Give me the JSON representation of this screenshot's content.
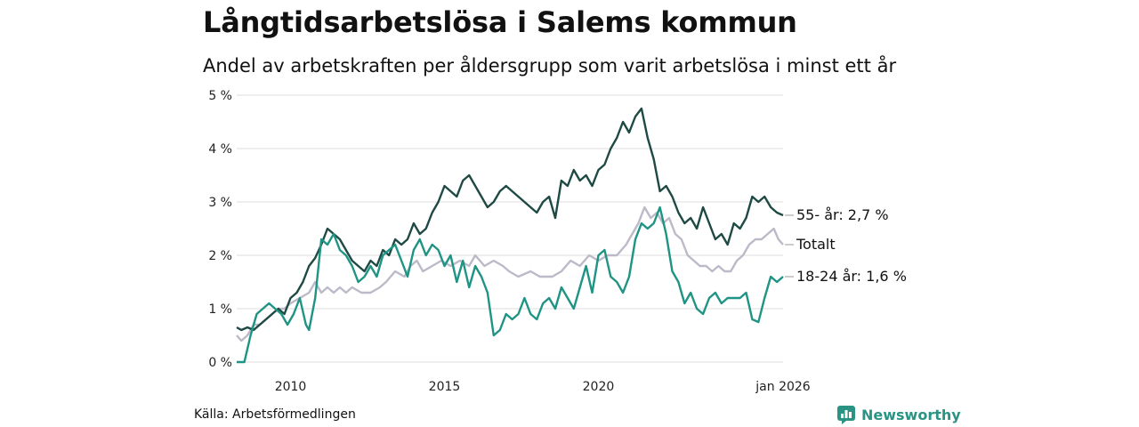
{
  "title": "Långtidsarbetslösa i Salems kommun",
  "subtitle": "Andel av arbetskraften per åldersgrupp som varit arbetslösa i minst ett år",
  "source": "Källa: Arbetsförmedlingen",
  "brand": "Newsworthy",
  "brand_icon": "bar-chart-icon",
  "chart_data": {
    "type": "line",
    "title": "Långtidsarbetslösa i Salems kommun",
    "ylabel": "",
    "xlabel": "",
    "ylim": [
      0,
      5
    ],
    "xlim": [
      2008.25,
      2026.0
    ],
    "y_ticks": [
      0,
      1,
      2,
      3,
      4,
      5
    ],
    "y_tick_labels": [
      "0 %",
      "1 %",
      "2 %",
      "3 %",
      "4 %",
      "5 %"
    ],
    "x_ticks": [
      2010,
      2015,
      2020,
      2026.0
    ],
    "x_tick_labels": [
      "2010",
      "2015",
      "2020",
      "jan 2026"
    ],
    "grid": true,
    "series": [
      {
        "name": "Totalt",
        "label": "Totalt",
        "color": "#bdb9c8",
        "points": [
          [
            2008.25,
            0.5
          ],
          [
            2008.4,
            0.4
          ],
          [
            2008.6,
            0.5
          ],
          [
            2008.8,
            0.7
          ],
          [
            2009.0,
            0.7
          ],
          [
            2009.2,
            0.8
          ],
          [
            2009.4,
            0.9
          ],
          [
            2009.6,
            1.0
          ],
          [
            2009.8,
            1.0
          ],
          [
            2010.0,
            1.1
          ],
          [
            2010.3,
            1.2
          ],
          [
            2010.6,
            1.3
          ],
          [
            2010.8,
            1.5
          ],
          [
            2011.0,
            1.3
          ],
          [
            2011.2,
            1.4
          ],
          [
            2011.4,
            1.3
          ],
          [
            2011.6,
            1.4
          ],
          [
            2011.8,
            1.3
          ],
          [
            2012.0,
            1.4
          ],
          [
            2012.3,
            1.3
          ],
          [
            2012.6,
            1.3
          ],
          [
            2012.9,
            1.4
          ],
          [
            2013.1,
            1.5
          ],
          [
            2013.4,
            1.7
          ],
          [
            2013.7,
            1.6
          ],
          [
            2013.9,
            1.8
          ],
          [
            2014.1,
            1.9
          ],
          [
            2014.3,
            1.7
          ],
          [
            2014.6,
            1.8
          ],
          [
            2014.9,
            1.9
          ],
          [
            2015.2,
            1.8
          ],
          [
            2015.5,
            1.9
          ],
          [
            2015.8,
            1.8
          ],
          [
            2016.0,
            2.0
          ],
          [
            2016.3,
            1.8
          ],
          [
            2016.6,
            1.9
          ],
          [
            2016.9,
            1.8
          ],
          [
            2017.1,
            1.7
          ],
          [
            2017.4,
            1.6
          ],
          [
            2017.8,
            1.7
          ],
          [
            2018.1,
            1.6
          ],
          [
            2018.5,
            1.6
          ],
          [
            2018.8,
            1.7
          ],
          [
            2019.1,
            1.9
          ],
          [
            2019.4,
            1.8
          ],
          [
            2019.7,
            2.0
          ],
          [
            2020.0,
            1.9
          ],
          [
            2020.3,
            2.0
          ],
          [
            2020.6,
            2.0
          ],
          [
            2020.9,
            2.2
          ],
          [
            2021.1,
            2.4
          ],
          [
            2021.3,
            2.6
          ],
          [
            2021.5,
            2.9
          ],
          [
            2021.7,
            2.7
          ],
          [
            2021.9,
            2.8
          ],
          [
            2022.1,
            2.6
          ],
          [
            2022.3,
            2.7
          ],
          [
            2022.5,
            2.4
          ],
          [
            2022.7,
            2.3
          ],
          [
            2022.9,
            2.0
          ],
          [
            2023.1,
            1.9
          ],
          [
            2023.3,
            1.8
          ],
          [
            2023.5,
            1.8
          ],
          [
            2023.7,
            1.7
          ],
          [
            2023.9,
            1.8
          ],
          [
            2024.1,
            1.7
          ],
          [
            2024.3,
            1.7
          ],
          [
            2024.5,
            1.9
          ],
          [
            2024.7,
            2.0
          ],
          [
            2024.9,
            2.2
          ],
          [
            2025.1,
            2.3
          ],
          [
            2025.3,
            2.3
          ],
          [
            2025.5,
            2.4
          ],
          [
            2025.7,
            2.5
          ],
          [
            2025.85,
            2.3
          ],
          [
            2026.0,
            2.2
          ]
        ]
      },
      {
        "name": "55- år",
        "label": "55- år: 2,7 %",
        "color": "#1f4a44",
        "points": [
          [
            2008.25,
            0.65
          ],
          [
            2008.4,
            0.6
          ],
          [
            2008.6,
            0.65
          ],
          [
            2008.8,
            0.6
          ],
          [
            2009.0,
            0.7
          ],
          [
            2009.2,
            0.8
          ],
          [
            2009.4,
            0.9
          ],
          [
            2009.6,
            1.0
          ],
          [
            2009.8,
            0.9
          ],
          [
            2010.0,
            1.2
          ],
          [
            2010.2,
            1.3
          ],
          [
            2010.4,
            1.5
          ],
          [
            2010.6,
            1.8
          ],
          [
            2010.8,
            1.95
          ],
          [
            2011.0,
            2.2
          ],
          [
            2011.2,
            2.5
          ],
          [
            2011.4,
            2.4
          ],
          [
            2011.6,
            2.3
          ],
          [
            2011.8,
            2.1
          ],
          [
            2012.0,
            1.9
          ],
          [
            2012.2,
            1.8
          ],
          [
            2012.4,
            1.7
          ],
          [
            2012.6,
            1.9
          ],
          [
            2012.8,
            1.8
          ],
          [
            2013.0,
            2.1
          ],
          [
            2013.2,
            2.0
          ],
          [
            2013.4,
            2.3
          ],
          [
            2013.6,
            2.2
          ],
          [
            2013.8,
            2.3
          ],
          [
            2014.0,
            2.6
          ],
          [
            2014.2,
            2.4
          ],
          [
            2014.4,
            2.5
          ],
          [
            2014.6,
            2.8
          ],
          [
            2014.8,
            3.0
          ],
          [
            2015.0,
            3.3
          ],
          [
            2015.2,
            3.2
          ],
          [
            2015.4,
            3.1
          ],
          [
            2015.6,
            3.4
          ],
          [
            2015.8,
            3.5
          ],
          [
            2016.0,
            3.3
          ],
          [
            2016.2,
            3.1
          ],
          [
            2016.4,
            2.9
          ],
          [
            2016.6,
            3.0
          ],
          [
            2016.8,
            3.2
          ],
          [
            2017.0,
            3.3
          ],
          [
            2017.2,
            3.2
          ],
          [
            2017.4,
            3.1
          ],
          [
            2017.6,
            3.0
          ],
          [
            2017.8,
            2.9
          ],
          [
            2018.0,
            2.8
          ],
          [
            2018.2,
            3.0
          ],
          [
            2018.4,
            3.1
          ],
          [
            2018.6,
            2.7
          ],
          [
            2018.8,
            3.4
          ],
          [
            2019.0,
            3.3
          ],
          [
            2019.2,
            3.6
          ],
          [
            2019.4,
            3.4
          ],
          [
            2019.6,
            3.5
          ],
          [
            2019.8,
            3.3
          ],
          [
            2020.0,
            3.6
          ],
          [
            2020.2,
            3.7
          ],
          [
            2020.4,
            4.0
          ],
          [
            2020.6,
            4.2
          ],
          [
            2020.8,
            4.5
          ],
          [
            2021.0,
            4.3
          ],
          [
            2021.2,
            4.6
          ],
          [
            2021.4,
            4.75
          ],
          [
            2021.6,
            4.2
          ],
          [
            2021.8,
            3.8
          ],
          [
            2022.0,
            3.2
          ],
          [
            2022.2,
            3.3
          ],
          [
            2022.4,
            3.1
          ],
          [
            2022.6,
            2.8
          ],
          [
            2022.8,
            2.6
          ],
          [
            2023.0,
            2.7
          ],
          [
            2023.2,
            2.5
          ],
          [
            2023.4,
            2.9
          ],
          [
            2023.6,
            2.6
          ],
          [
            2023.8,
            2.3
          ],
          [
            2024.0,
            2.4
          ],
          [
            2024.2,
            2.2
          ],
          [
            2024.4,
            2.6
          ],
          [
            2024.6,
            2.5
          ],
          [
            2024.8,
            2.7
          ],
          [
            2025.0,
            3.1
          ],
          [
            2025.2,
            3.0
          ],
          [
            2025.4,
            3.1
          ],
          [
            2025.6,
            2.9
          ],
          [
            2025.8,
            2.8
          ],
          [
            2026.0,
            2.75
          ]
        ]
      },
      {
        "name": "18-24 år",
        "label": "18-24 år: 1,6 %",
        "color": "#1f9484",
        "points": [
          [
            2008.25,
            0.0
          ],
          [
            2008.5,
            0.0
          ],
          [
            2008.7,
            0.5
          ],
          [
            2008.9,
            0.9
          ],
          [
            2009.1,
            1.0
          ],
          [
            2009.3,
            1.1
          ],
          [
            2009.5,
            1.0
          ],
          [
            2009.7,
            0.9
          ],
          [
            2009.9,
            0.7
          ],
          [
            2010.1,
            0.9
          ],
          [
            2010.3,
            1.2
          ],
          [
            2010.5,
            0.7
          ],
          [
            2010.6,
            0.6
          ],
          [
            2010.8,
            1.2
          ],
          [
            2011.0,
            2.3
          ],
          [
            2011.2,
            2.2
          ],
          [
            2011.4,
            2.4
          ],
          [
            2011.6,
            2.1
          ],
          [
            2011.8,
            2.0
          ],
          [
            2012.0,
            1.8
          ],
          [
            2012.2,
            1.5
          ],
          [
            2012.4,
            1.6
          ],
          [
            2012.6,
            1.8
          ],
          [
            2012.8,
            1.6
          ],
          [
            2013.0,
            2.0
          ],
          [
            2013.2,
            2.1
          ],
          [
            2013.4,
            2.2
          ],
          [
            2013.6,
            1.9
          ],
          [
            2013.8,
            1.6
          ],
          [
            2014.0,
            2.1
          ],
          [
            2014.2,
            2.3
          ],
          [
            2014.4,
            2.0
          ],
          [
            2014.6,
            2.2
          ],
          [
            2014.8,
            2.1
          ],
          [
            2015.0,
            1.8
          ],
          [
            2015.2,
            2.0
          ],
          [
            2015.4,
            1.5
          ],
          [
            2015.6,
            1.9
          ],
          [
            2015.8,
            1.4
          ],
          [
            2016.0,
            1.8
          ],
          [
            2016.2,
            1.6
          ],
          [
            2016.4,
            1.3
          ],
          [
            2016.6,
            0.5
          ],
          [
            2016.8,
            0.6
          ],
          [
            2017.0,
            0.9
          ],
          [
            2017.2,
            0.8
          ],
          [
            2017.4,
            0.9
          ],
          [
            2017.6,
            1.2
          ],
          [
            2017.8,
            0.9
          ],
          [
            2018.0,
            0.8
          ],
          [
            2018.2,
            1.1
          ],
          [
            2018.4,
            1.2
          ],
          [
            2018.6,
            1.0
          ],
          [
            2018.8,
            1.4
          ],
          [
            2019.0,
            1.2
          ],
          [
            2019.2,
            1.0
          ],
          [
            2019.4,
            1.4
          ],
          [
            2019.6,
            1.8
          ],
          [
            2019.8,
            1.3
          ],
          [
            2020.0,
            2.0
          ],
          [
            2020.2,
            2.1
          ],
          [
            2020.4,
            1.6
          ],
          [
            2020.6,
            1.5
          ],
          [
            2020.8,
            1.3
          ],
          [
            2021.0,
            1.6
          ],
          [
            2021.2,
            2.3
          ],
          [
            2021.4,
            2.6
          ],
          [
            2021.6,
            2.5
          ],
          [
            2021.8,
            2.6
          ],
          [
            2022.0,
            2.9
          ],
          [
            2022.2,
            2.4
          ],
          [
            2022.4,
            1.7
          ],
          [
            2022.6,
            1.5
          ],
          [
            2022.8,
            1.1
          ],
          [
            2023.0,
            1.3
          ],
          [
            2023.2,
            1.0
          ],
          [
            2023.4,
            0.9
          ],
          [
            2023.6,
            1.2
          ],
          [
            2023.8,
            1.3
          ],
          [
            2024.0,
            1.1
          ],
          [
            2024.2,
            1.2
          ],
          [
            2024.4,
            1.2
          ],
          [
            2024.6,
            1.2
          ],
          [
            2024.8,
            1.3
          ],
          [
            2025.0,
            0.8
          ],
          [
            2025.2,
            0.75
          ],
          [
            2025.4,
            1.2
          ],
          [
            2025.6,
            1.6
          ],
          [
            2025.8,
            1.5
          ],
          [
            2026.0,
            1.6
          ]
        ]
      }
    ]
  }
}
